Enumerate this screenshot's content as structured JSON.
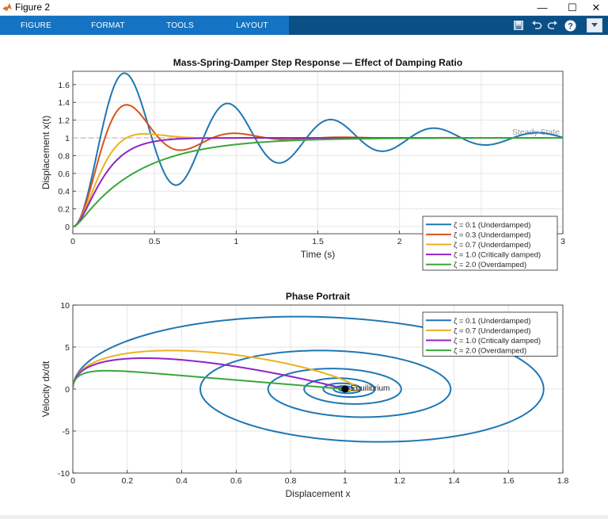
{
  "window": {
    "title": "Figure 2",
    "minimize_glyph": "—",
    "maximize_glyph": "☐",
    "close_glyph": "✕"
  },
  "toolstrip": {
    "tabs": [
      "FIGURE",
      "FORMAT",
      "TOOLS",
      "LAYOUT"
    ],
    "icons": [
      "save-icon",
      "undo-icon",
      "redo-icon",
      "help-icon",
      "dropdown-icon"
    ],
    "bar_color": "#0b4f87",
    "tab_color": "#1473c2"
  },
  "chart_data": [
    {
      "type": "line",
      "title": "Mass-Spring-Damper Step Response — Effect of Damping Ratio",
      "xlabel": "Time (s)",
      "ylabel": "Displacement x(t)",
      "xlim": [
        0,
        3
      ],
      "ylim": [
        -0.08,
        1.75
      ],
      "xticks": [
        0,
        0.5,
        1,
        1.5,
        2,
        2.5,
        3
      ],
      "xtick_labels": [
        "0",
        "0.5",
        "1",
        "1.5",
        "2",
        "2.5",
        "3"
      ],
      "yticks": [
        0,
        0.2,
        0.4,
        0.6,
        0.8,
        1,
        1.2,
        1.4,
        1.6
      ],
      "ytick_labels": [
        "0",
        "0.2",
        "0.4",
        "0.6",
        "0.8",
        "1",
        "1.2",
        "1.4",
        "1.6"
      ],
      "grid": true,
      "legend_position": "lower-right",
      "steady_state": {
        "value": 1,
        "label": "Steady State",
        "color": "#aaaaaa"
      },
      "natural_frequency_rad_s": 10,
      "series": [
        {
          "name": "ζ = 0.1 (Underdamped)",
          "zeta": 0.1,
          "color": "#1f77b4"
        },
        {
          "name": "ζ = 0.3 (Underdamped)",
          "zeta": 0.3,
          "color": "#d95319"
        },
        {
          "name": "ζ = 0.7 (Underdamped)",
          "zeta": 0.7,
          "color": "#edb120"
        },
        {
          "name": "ζ = 1.0 (Critically damped)",
          "zeta": 1.0,
          "color": "#8e24c7"
        },
        {
          "name": "ζ = 2.0 (Overdamped)",
          "zeta": 2.0,
          "color": "#3aa63a"
        }
      ]
    },
    {
      "type": "line",
      "title": "Phase Portrait",
      "xlabel": "Displacement x",
      "ylabel": "Velocity dx/dt",
      "xlim": [
        0,
        1.8
      ],
      "ylim": [
        -10,
        10
      ],
      "xticks": [
        0,
        0.2,
        0.4,
        0.6,
        0.8,
        1,
        1.2,
        1.4,
        1.6,
        1.8
      ],
      "xtick_labels": [
        "0",
        "0.2",
        "0.4",
        "0.6",
        "0.8",
        "1",
        "1.2",
        "1.4",
        "1.6",
        "1.8"
      ],
      "yticks": [
        -10,
        -5,
        0,
        5,
        10
      ],
      "ytick_labels": [
        "-10",
        "-5",
        "0",
        "5",
        "10"
      ],
      "grid": true,
      "legend_position": "top-right",
      "equilibrium": {
        "x": 1,
        "y": 0,
        "label": "Equilibrium"
      },
      "natural_frequency_rad_s": 10,
      "series": [
        {
          "name": "ζ = 0.1 (Underdamped)",
          "zeta": 0.1,
          "color": "#1f77b4"
        },
        {
          "name": "ζ = 0.7 (Underdamped)",
          "zeta": 0.7,
          "color": "#edb120"
        },
        {
          "name": "ζ = 1.0 (Critically damped)",
          "zeta": 1.0,
          "color": "#8e24c7"
        },
        {
          "name": "ζ = 2.0 (Overdamped)",
          "zeta": 2.0,
          "color": "#3aa63a"
        }
      ]
    }
  ]
}
